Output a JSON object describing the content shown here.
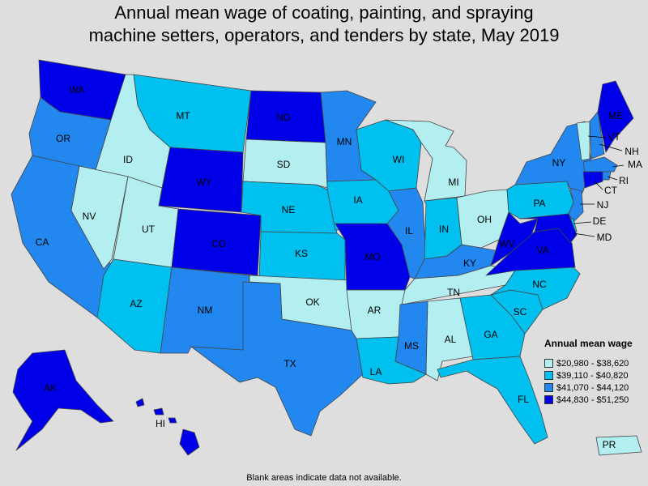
{
  "title_line1": "Annual mean wage of coating, painting, and spraying",
  "title_line2": "machine setters, operators, and tenders by state, May 2019",
  "legend": {
    "title": "Annual mean wage",
    "items": [
      {
        "label": "$20,980 - $38,620",
        "color": "#b3eef0"
      },
      {
        "label": "$39,110 - $40,820",
        "color": "#00c0f0"
      },
      {
        "label": "$41,070 - $44,120",
        "color": "#2288f0"
      },
      {
        "label": "$44,830 - $51,250",
        "color": "#0000e8"
      }
    ]
  },
  "footnote": "Blank areas indicate data not available.",
  "states": {
    "WA": {
      "label": "WA",
      "class": 4
    },
    "OR": {
      "label": "OR",
      "class": 3
    },
    "CA": {
      "label": "CA",
      "class": 3
    },
    "ID": {
      "label": "ID",
      "class": 1
    },
    "NV": {
      "label": "NV",
      "class": 1
    },
    "UT": {
      "label": "UT",
      "class": 1
    },
    "AZ": {
      "label": "AZ",
      "class": 2
    },
    "MT": {
      "label": "MT",
      "class": 2
    },
    "WY": {
      "label": "WY",
      "class": 4
    },
    "CO": {
      "label": "CO",
      "class": 4
    },
    "NM": {
      "label": "NM",
      "class": 3
    },
    "ND": {
      "label": "ND",
      "class": 4
    },
    "SD": {
      "label": "SD",
      "class": 1
    },
    "NE": {
      "label": "NE",
      "class": 2
    },
    "KS": {
      "label": "KS",
      "class": 2
    },
    "OK": {
      "label": "OK",
      "class": 1
    },
    "TX": {
      "label": "TX",
      "class": 3
    },
    "MN": {
      "label": "MN",
      "class": 3
    },
    "IA": {
      "label": "IA",
      "class": 2
    },
    "MO": {
      "label": "MO",
      "class": 4
    },
    "AR": {
      "label": "AR",
      "class": 1
    },
    "LA": {
      "label": "LA",
      "class": 2
    },
    "WI": {
      "label": "WI",
      "class": 2
    },
    "IL": {
      "label": "IL",
      "class": 3
    },
    "MI": {
      "label": "MI",
      "class": 1
    },
    "IN": {
      "label": "IN",
      "class": 2
    },
    "OH": {
      "label": "OH",
      "class": 1
    },
    "KY": {
      "label": "KY",
      "class": 3
    },
    "TN": {
      "label": "TN",
      "class": 1
    },
    "MS": {
      "label": "MS",
      "class": 3
    },
    "AL": {
      "label": "AL",
      "class": 1
    },
    "GA": {
      "label": "GA",
      "class": 2
    },
    "FL": {
      "label": "FL",
      "class": 2
    },
    "SC": {
      "label": "SC",
      "class": 2
    },
    "NC": {
      "label": "NC",
      "class": 2
    },
    "VA": {
      "label": "VA",
      "class": 4
    },
    "WV": {
      "label": "WV",
      "class": 4
    },
    "PA": {
      "label": "PA",
      "class": 2
    },
    "NY": {
      "label": "NY",
      "class": 3
    },
    "VT": {
      "label": "VT",
      "class": 1
    },
    "NH": {
      "label": "NH",
      "class": 3
    },
    "ME": {
      "label": "ME",
      "class": 4
    },
    "MA": {
      "label": "MA",
      "class": 3
    },
    "RI": {
      "label": "RI",
      "class": 3
    },
    "CT": {
      "label": "CT",
      "class": 4
    },
    "NJ": {
      "label": "NJ",
      "class": 3
    },
    "DE": {
      "label": "DE",
      "class": 2
    },
    "MD": {
      "label": "MD",
      "class": 4
    },
    "AK": {
      "label": "AK",
      "class": 4
    },
    "HI": {
      "label": "HI",
      "class": 4
    },
    "PR": {
      "label": "PR",
      "class": 1
    }
  }
}
